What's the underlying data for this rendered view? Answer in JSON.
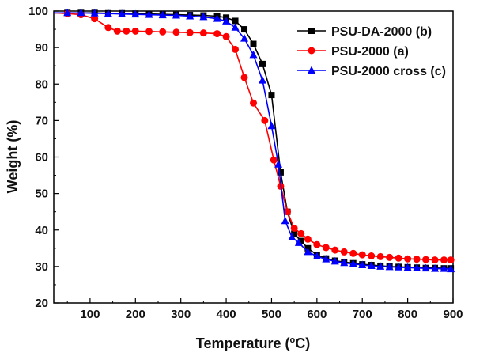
{
  "chart_data": {
    "type": "line",
    "title": "",
    "xlabel": "Temperature (",
    "xlabel_unit": "o",
    "xlabel_suffix": "C)",
    "ylabel": "Weight (%)",
    "xlim": [
      20,
      900
    ],
    "ylim": [
      20,
      100
    ],
    "xticks": [
      100,
      200,
      300,
      400,
      500,
      600,
      700,
      800,
      900
    ],
    "yticks": [
      20,
      30,
      40,
      50,
      60,
      70,
      80,
      90,
      100
    ],
    "xtick_labels": [
      "100",
      "200",
      "300",
      "400",
      "500",
      "600",
      "700",
      "800",
      "900"
    ],
    "ytick_labels": [
      "20",
      "30",
      "40",
      "50",
      "60",
      "70",
      "80",
      "90",
      "100"
    ],
    "legend_position": "top-right",
    "series": [
      {
        "name": "PSU-DA-2000 (b)",
        "color": "#000000",
        "marker": "square",
        "x": [
          20,
          50,
          80,
          110,
          140,
          170,
          200,
          230,
          260,
          290,
          320,
          350,
          380,
          400,
          420,
          440,
          460,
          480,
          500,
          520,
          535,
          550,
          565,
          580,
          600,
          620,
          640,
          660,
          680,
          700,
          720,
          740,
          760,
          780,
          800,
          820,
          840,
          860,
          880,
          895
        ],
        "y": [
          99.5,
          99.5,
          99.5,
          99.5,
          99.4,
          99.4,
          99.3,
          99.2,
          99.1,
          99.0,
          98.9,
          98.8,
          98.6,
          98.2,
          97.3,
          95.0,
          91.0,
          85.5,
          77.0,
          55.8,
          45.0,
          39.0,
          37.0,
          35.0,
          33.2,
          32.2,
          31.6,
          31.2,
          30.9,
          30.6,
          30.4,
          30.2,
          30.0,
          29.9,
          29.8,
          29.7,
          29.6,
          29.6,
          29.5,
          29.5
        ]
      },
      {
        "name": "PSU-2000 (a)",
        "color": "#ff0000",
        "marker": "circle",
        "x": [
          20,
          50,
          80,
          110,
          140,
          160,
          180,
          200,
          230,
          260,
          290,
          320,
          350,
          380,
          400,
          420,
          440,
          460,
          485,
          505,
          520,
          535,
          550,
          565,
          580,
          600,
          620,
          640,
          660,
          680,
          700,
          720,
          740,
          760,
          780,
          800,
          820,
          840,
          860,
          880,
          895
        ],
        "y": [
          99.5,
          99.3,
          99.0,
          97.9,
          95.5,
          94.5,
          94.5,
          94.5,
          94.4,
          94.3,
          94.2,
          94.1,
          94.0,
          93.8,
          93.0,
          89.5,
          81.8,
          74.8,
          70.0,
          59.2,
          52.0,
          45.0,
          40.5,
          39.0,
          37.5,
          36.0,
          35.2,
          34.5,
          34.0,
          33.6,
          33.2,
          32.9,
          32.7,
          32.5,
          32.3,
          32.1,
          32.0,
          31.9,
          31.8,
          31.8,
          31.8
        ]
      },
      {
        "name": "PSU-2000 cross (c)",
        "color": "#0000ff",
        "marker": "triangle",
        "x": [
          20,
          50,
          80,
          110,
          140,
          170,
          200,
          230,
          260,
          290,
          320,
          350,
          380,
          400,
          420,
          440,
          460,
          480,
          500,
          515,
          530,
          545,
          560,
          580,
          600,
          620,
          640,
          660,
          680,
          700,
          720,
          740,
          760,
          780,
          800,
          820,
          840,
          860,
          880,
          895
        ],
        "y": [
          99.5,
          99.5,
          99.5,
          99.4,
          99.3,
          99.2,
          99.1,
          99.0,
          98.9,
          98.8,
          98.6,
          98.4,
          97.9,
          97.2,
          95.5,
          92.5,
          88.0,
          81.0,
          68.5,
          58.0,
          42.5,
          38.0,
          36.5,
          34.0,
          32.8,
          32.0,
          31.4,
          31.0,
          30.7,
          30.4,
          30.2,
          30.0,
          29.9,
          29.8,
          29.7,
          29.6,
          29.5,
          29.4,
          29.4,
          29.3
        ]
      }
    ]
  }
}
